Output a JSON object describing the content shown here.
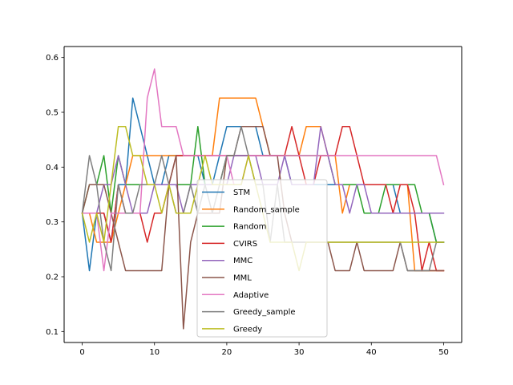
{
  "chart_data": {
    "type": "line",
    "title": "",
    "xlabel": "",
    "ylabel": "",
    "xlim": [
      -2.5,
      52.5
    ],
    "ylim": [
      0.08,
      0.62
    ],
    "xticks": [
      0,
      10,
      20,
      30,
      40,
      50
    ],
    "yticks": [
      0.1,
      0.2,
      0.3,
      0.4,
      0.5,
      0.6
    ],
    "xtick_labels": [
      "0",
      "10",
      "20",
      "30",
      "40",
      "50"
    ],
    "ytick_labels": [
      "0.1",
      "0.2",
      "0.3",
      "0.4",
      "0.5",
      "0.6"
    ],
    "grid": false,
    "legend_position": "lower-center",
    "series": [
      {
        "name": "STM",
        "color": "#1f77b4",
        "values": [
          0.316,
          0.211,
          0.316,
          0.316,
          0.263,
          0.368,
          0.368,
          0.526,
          0.474,
          0.421,
          0.368,
          0.368,
          0.421,
          0.421,
          0.421,
          0.421,
          0.421,
          0.368,
          0.368,
          0.421,
          0.474,
          0.474,
          0.474,
          0.474,
          0.474,
          0.421,
          0.421,
          0.421,
          0.421,
          0.368,
          0.368,
          0.368,
          0.368,
          0.368,
          0.368,
          0.368,
          0.368,
          0.368,
          0.368,
          0.368,
          0.368,
          0.368,
          0.368,
          0.368,
          0.316,
          0.316,
          0.316,
          0.316,
          0.316,
          0.263,
          0.263
        ]
      },
      {
        "name": "Random_sample",
        "color": "#ff7f0e",
        "values": [
          0.316,
          0.316,
          0.263,
          0.263,
          0.263,
          0.316,
          0.368,
          0.421,
          0.421,
          0.421,
          0.421,
          0.421,
          0.421,
          0.421,
          0.421,
          0.421,
          0.421,
          0.421,
          0.421,
          0.526,
          0.526,
          0.526,
          0.526,
          0.526,
          0.526,
          0.474,
          0.421,
          0.421,
          0.421,
          0.421,
          0.421,
          0.474,
          0.474,
          0.474,
          0.421,
          0.421,
          0.316,
          0.368,
          0.368,
          0.368,
          0.368,
          0.368,
          0.368,
          0.368,
          0.368,
          0.368,
          0.211,
          0.211,
          0.211,
          0.211,
          0.211
        ]
      },
      {
        "name": "Random",
        "color": "#2ca02c",
        "values": [
          0.316,
          0.368,
          0.368,
          0.421,
          0.316,
          0.421,
          0.368,
          0.368,
          0.368,
          0.368,
          0.368,
          0.368,
          0.368,
          0.368,
          0.368,
          0.368,
          0.474,
          0.368,
          0.368,
          0.368,
          0.421,
          0.421,
          0.421,
          0.421,
          0.421,
          0.421,
          0.421,
          0.421,
          0.421,
          0.421,
          0.421,
          0.421,
          0.421,
          0.421,
          0.421,
          0.368,
          0.368,
          0.368,
          0.368,
          0.316,
          0.316,
          0.316,
          0.368,
          0.368,
          0.368,
          0.368,
          0.368,
          0.316,
          0.316,
          0.263,
          0.263
        ]
      },
      {
        "name": "CVIRS",
        "color": "#d62728",
        "values": [
          0.316,
          0.316,
          0.316,
          0.316,
          0.263,
          0.368,
          0.316,
          0.316,
          0.316,
          0.263,
          0.316,
          0.316,
          0.368,
          0.421,
          0.421,
          0.421,
          0.421,
          0.421,
          0.421,
          0.421,
          0.421,
          0.421,
          0.421,
          0.421,
          0.421,
          0.421,
          0.421,
          0.421,
          0.421,
          0.474,
          0.421,
          0.368,
          0.368,
          0.421,
          0.421,
          0.421,
          0.474,
          0.474,
          0.421,
          0.368,
          0.368,
          0.368,
          0.368,
          0.316,
          0.368,
          0.368,
          0.316,
          0.211,
          0.263,
          0.211,
          0.211
        ]
      },
      {
        "name": "MMC",
        "color": "#9467bd",
        "values": [
          0.316,
          0.316,
          0.316,
          0.368,
          0.368,
          0.421,
          0.368,
          0.316,
          0.316,
          0.316,
          0.368,
          0.368,
          0.368,
          0.368,
          0.316,
          0.368,
          0.368,
          0.368,
          0.368,
          0.368,
          0.368,
          0.421,
          0.421,
          0.421,
          0.421,
          0.368,
          0.368,
          0.368,
          0.421,
          0.368,
          0.368,
          0.368,
          0.368,
          0.474,
          0.421,
          0.368,
          0.368,
          0.316,
          0.368,
          0.368,
          0.316,
          0.316,
          0.316,
          0.316,
          0.316,
          0.316,
          0.316,
          0.316,
          0.316,
          0.316,
          0.316
        ]
      },
      {
        "name": "MML",
        "color": "#8c564b",
        "values": [
          0.316,
          0.368,
          0.368,
          0.368,
          0.316,
          0.263,
          0.211,
          0.211,
          0.211,
          0.211,
          0.211,
          0.211,
          0.368,
          0.421,
          0.105,
          0.263,
          0.316,
          0.316,
          0.316,
          0.316,
          0.421,
          0.421,
          0.474,
          0.474,
          0.474,
          0.474,
          0.421,
          0.421,
          0.316,
          0.263,
          0.263,
          0.263,
          0.263,
          0.263,
          0.263,
          0.211,
          0.211,
          0.211,
          0.263,
          0.211,
          0.211,
          0.211,
          0.211,
          0.211,
          0.263,
          0.211,
          0.211,
          0.211,
          0.211,
          0.211,
          0.211
        ]
      },
      {
        "name": "Adaptive",
        "color": "#e377c2",
        "values": [
          0.316,
          0.316,
          0.316,
          0.211,
          0.316,
          0.316,
          0.316,
          0.316,
          0.316,
          0.526,
          0.579,
          0.474,
          0.474,
          0.474,
          0.421,
          0.421,
          0.421,
          0.421,
          0.421,
          0.421,
          0.421,
          0.368,
          0.368,
          0.421,
          0.421,
          0.421,
          0.421,
          0.421,
          0.421,
          0.421,
          0.421,
          0.421,
          0.421,
          0.421,
          0.421,
          0.421,
          0.421,
          0.421,
          0.421,
          0.421,
          0.421,
          0.421,
          0.421,
          0.421,
          0.421,
          0.421,
          0.421,
          0.421,
          0.421,
          0.421,
          0.368
        ]
      },
      {
        "name": "Greedy_sample",
        "color": "#7f7f7f",
        "values": [
          0.316,
          0.421,
          0.368,
          0.263,
          0.211,
          0.368,
          0.316,
          0.316,
          0.368,
          0.368,
          0.368,
          0.421,
          0.368,
          0.316,
          0.316,
          0.368,
          0.316,
          0.368,
          0.316,
          0.368,
          0.421,
          0.421,
          0.474,
          0.421,
          0.368,
          0.368,
          0.263,
          0.368,
          0.263,
          0.263,
          0.263,
          0.263,
          0.263,
          0.263,
          0.263,
          0.263,
          0.263,
          0.263,
          0.263,
          0.263,
          0.263,
          0.263,
          0.263,
          0.263,
          0.263,
          0.211,
          0.211,
          0.211,
          0.211,
          0.263,
          0.263
        ]
      },
      {
        "name": "Greedy",
        "color": "#bcbd22",
        "values": [
          0.316,
          0.263,
          0.316,
          0.263,
          0.368,
          0.474,
          0.474,
          0.421,
          0.421,
          0.368,
          0.368,
          0.316,
          0.368,
          0.316,
          0.316,
          0.316,
          0.368,
          0.421,
          0.368,
          0.368,
          0.368,
          0.368,
          0.368,
          0.421,
          0.368,
          0.316,
          0.263,
          0.263,
          0.263,
          0.263,
          0.211,
          0.263,
          0.263,
          0.263,
          0.263,
          0.263,
          0.263,
          0.263,
          0.263,
          0.263,
          0.263,
          0.263,
          0.263,
          0.263,
          0.263,
          0.263,
          0.263,
          0.263,
          0.263,
          0.263,
          0.263
        ]
      }
    ]
  }
}
